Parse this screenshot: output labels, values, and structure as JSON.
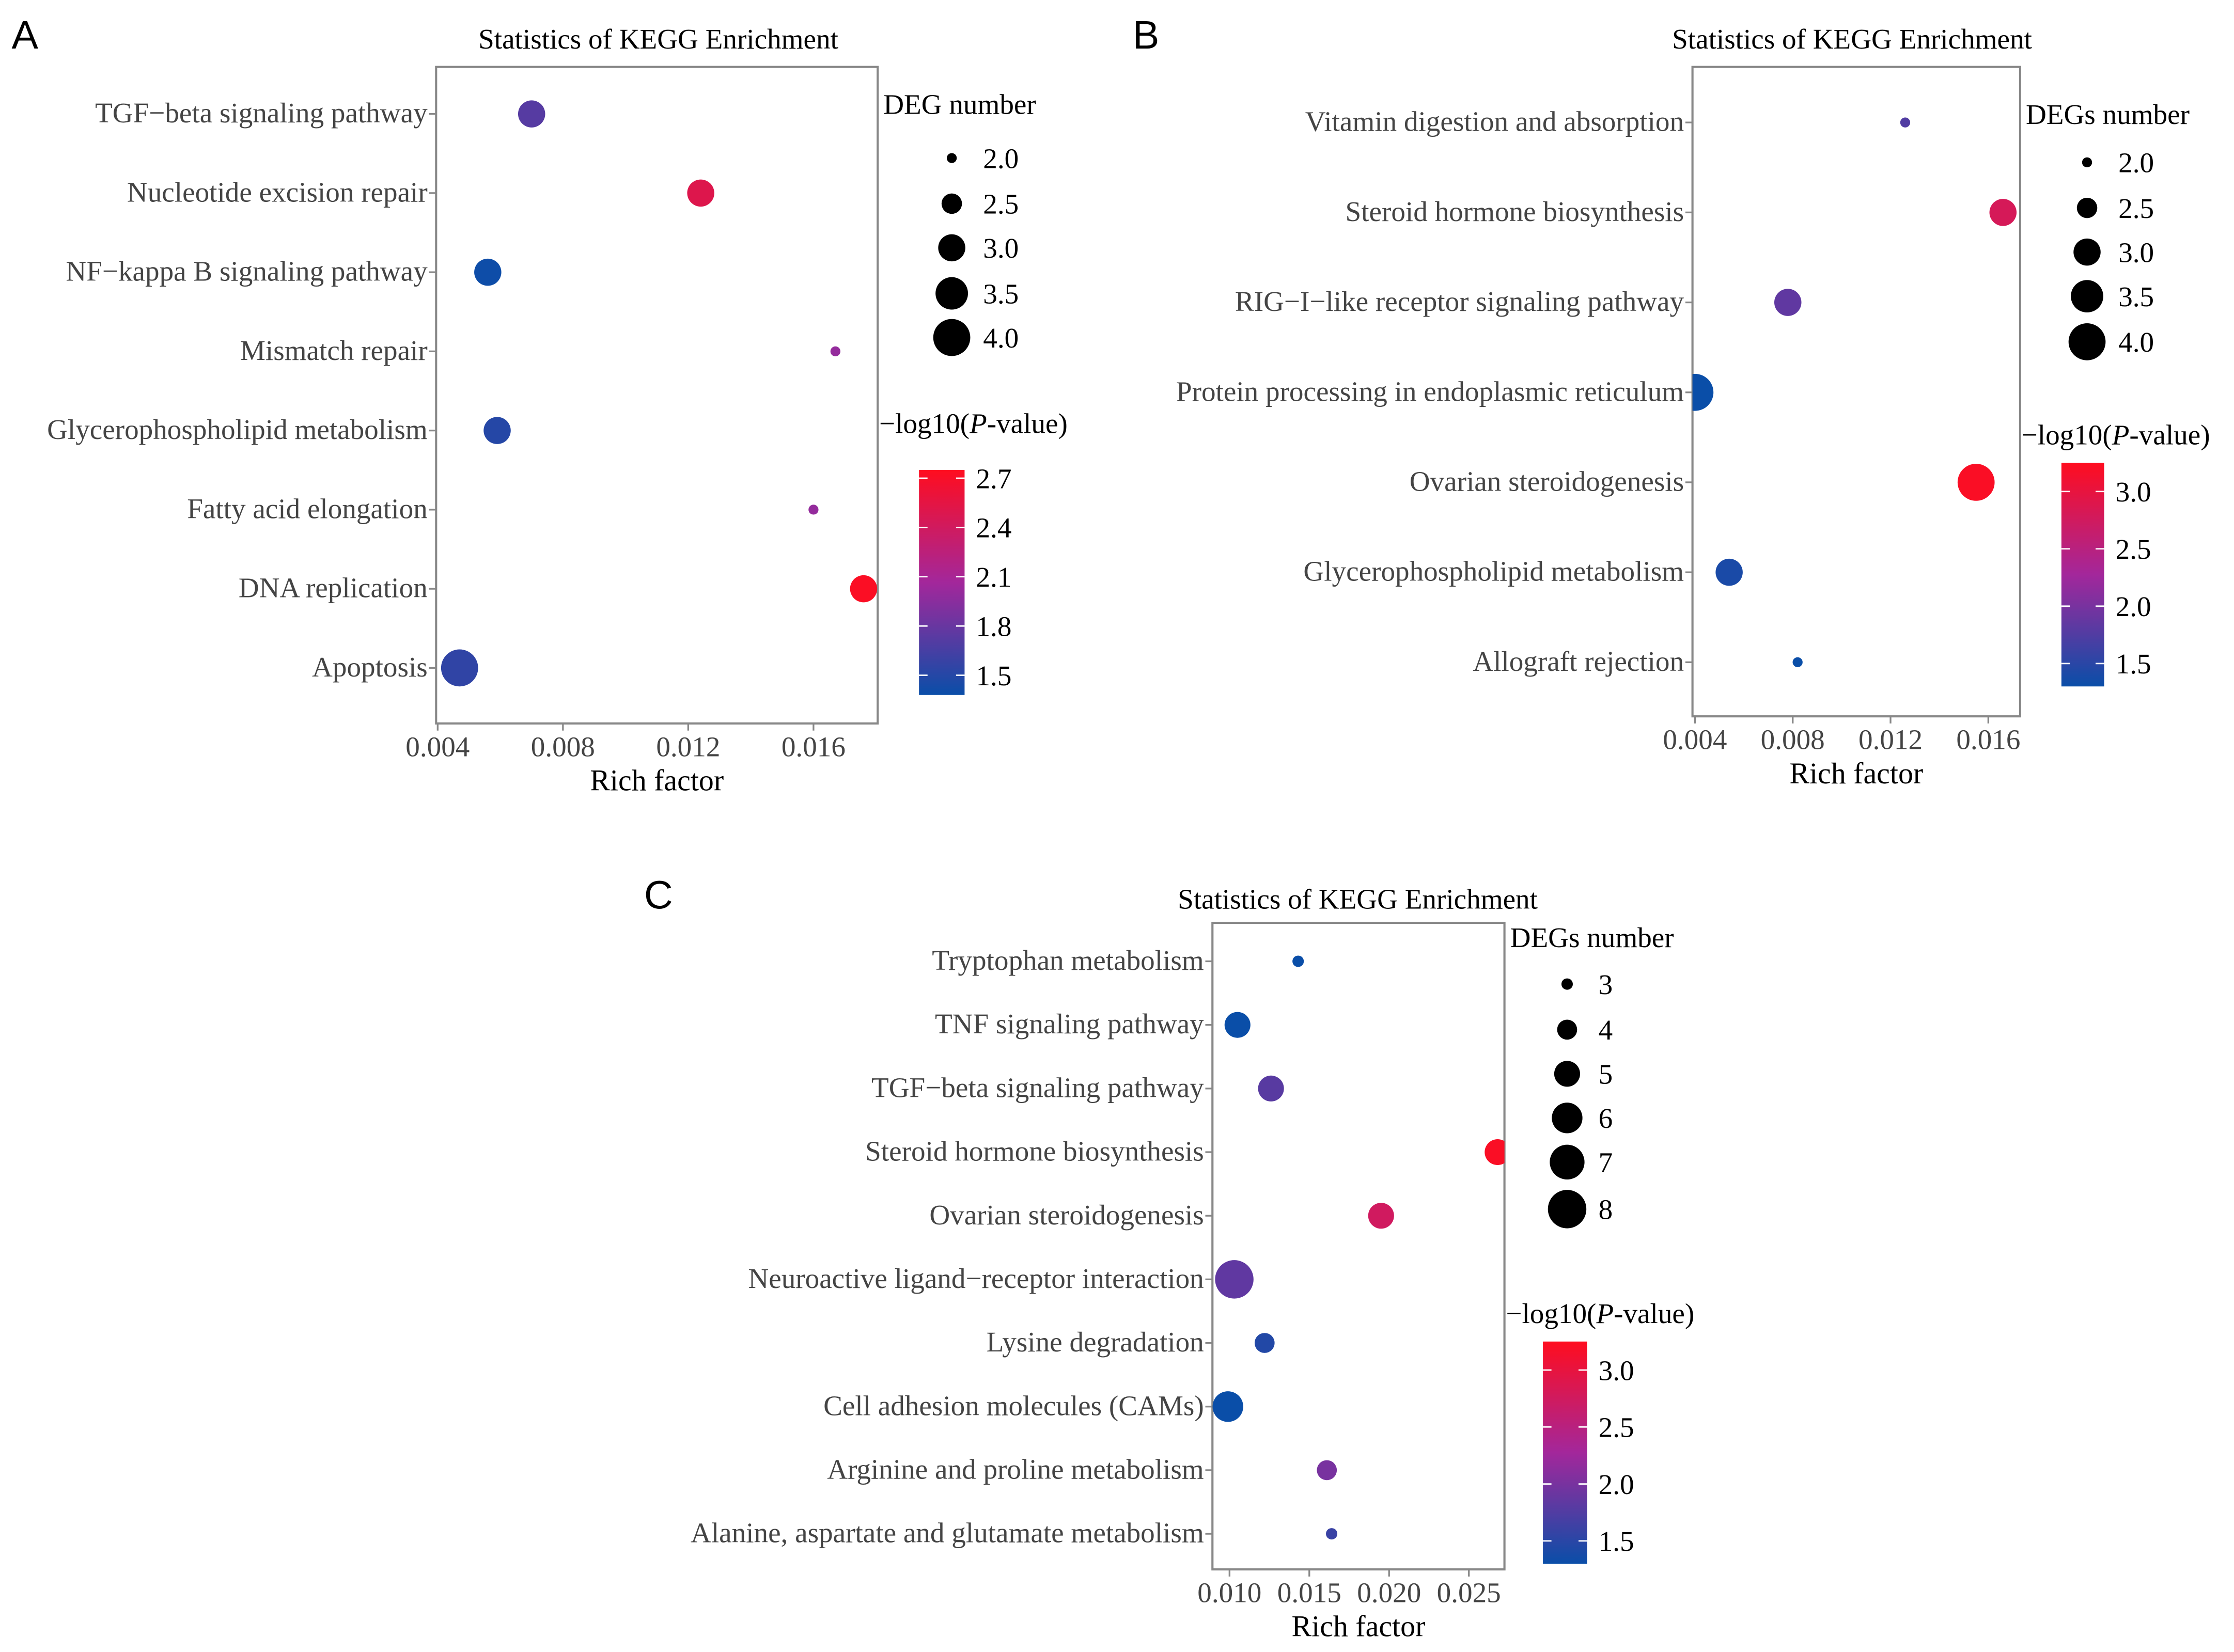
{
  "colors": {
    "low": "#0a4ea8",
    "mid": "#a3279b",
    "high": "#ff0d1f",
    "axis": "#888888"
  },
  "chart_data": [
    {
      "panel": "A",
      "type": "scatter",
      "title": "Statistics of KEGG Enrichment",
      "xlabel": "Rich factor",
      "ylabel": "",
      "xlim": [
        0.00395,
        0.01805
      ],
      "xticks": [
        "0.004",
        "0.008",
        "0.012",
        "0.016"
      ],
      "size_legend_title": "DEG number",
      "size_ticks": [
        "2.0",
        "2.5",
        "3.0",
        "3.5",
        "4.0"
      ],
      "size_range": [
        2,
        4
      ],
      "color_legend_title_prefix": "−log10(",
      "color_legend_title_italic": "P",
      "color_legend_title_suffix": "-value)",
      "color_ticks": [
        "1.5",
        "1.8",
        "2.1",
        "2.4",
        "2.7"
      ],
      "color_range": [
        1.38,
        2.75
      ],
      "categories": [
        "TGF−beta signaling pathway",
        "Nucleotide excision repair",
        "NF−kappa B signaling pathway",
        "Mismatch repair",
        "Glycerophospholipid metabolism",
        "Fatty acid elongation",
        "DNA replication",
        "Apoptosis"
      ],
      "rich_factor": [
        0.007,
        0.0124,
        0.0056,
        0.0167,
        0.0059,
        0.016,
        0.0176,
        0.0047
      ],
      "deg_number": [
        3,
        3,
        3,
        2,
        3,
        2,
        3,
        4
      ],
      "neg_log10_p": [
        1.72,
        2.5,
        1.4,
        2.0,
        1.5,
        2.0,
        2.72,
        1.55
      ]
    },
    {
      "panel": "B",
      "type": "scatter",
      "title": "Statistics of KEGG Enrichment",
      "xlabel": "Rich factor",
      "ylabel": "",
      "xlim": [
        0.0039,
        0.0173
      ],
      "xticks": [
        "0.004",
        "0.008",
        "0.012",
        "0.016"
      ],
      "size_legend_title": "DEGs number",
      "size_ticks": [
        "2.0",
        "2.5",
        "3.0",
        "3.5",
        "4.0"
      ],
      "size_range": [
        2,
        4
      ],
      "color_legend_title_prefix": "−log10(",
      "color_legend_title_italic": "P",
      "color_legend_title_suffix": "-value)",
      "color_ticks": [
        "1.5",
        "2.0",
        "2.5",
        "3.0"
      ],
      "color_range": [
        1.3,
        3.25
      ],
      "categories": [
        "Vitamin digestion and absorption",
        "Steroid hormone biosynthesis",
        "RIG−I−like receptor signaling pathway",
        "Protein processing in endoplasmic reticulum",
        "Ovarian steroidogenesis",
        "Glycerophospholipid metabolism",
        "Allograft rejection"
      ],
      "rich_factor": [
        0.0126,
        0.0166,
        0.0078,
        0.004,
        0.0155,
        0.0054,
        0.0082
      ],
      "deg_number": [
        2,
        3,
        3,
        4,
        4,
        3,
        2
      ],
      "neg_log10_p": [
        1.75,
        2.8,
        1.85,
        1.3,
        3.2,
        1.4,
        1.3
      ]
    },
    {
      "panel": "C",
      "type": "scatter",
      "title": "Statistics of KEGG Enrichment",
      "xlabel": "Rich factor",
      "ylabel": "",
      "xlim": [
        0.00893,
        0.02723
      ],
      "xticks": [
        "0.010",
        "0.015",
        "0.020",
        "0.025"
      ],
      "size_legend_title": "DEGs number",
      "size_ticks": [
        "3",
        "4",
        "5",
        "6",
        "7",
        "8"
      ],
      "size_range": [
        3,
        8
      ],
      "color_legend_title_prefix": "−log10(",
      "color_legend_title_italic": "P",
      "color_legend_title_suffix": "-value)",
      "color_ticks": [
        "1.5",
        "2.0",
        "2.5",
        "3.0"
      ],
      "color_range": [
        1.3,
        3.25
      ],
      "categories": [
        "Tryptophan metabolism",
        "TNF signaling pathway",
        "TGF−beta signaling pathway",
        "Steroid hormone biosynthesis",
        "Ovarian steroidogenesis",
        "Neuroactive ligand−receptor interaction",
        "Lysine degradation",
        "Cell adhesion molecules (CAMs)",
        "Arginine and proline metabolism",
        "Alanine, aspartate and glutamate metabolism"
      ],
      "rich_factor": [
        0.0143,
        0.0105,
        0.0126,
        0.0268,
        0.0195,
        0.0103,
        0.0122,
        0.0099,
        0.0161,
        0.0164
      ],
      "deg_number": [
        3,
        5,
        5,
        5,
        5,
        8,
        4,
        6,
        4,
        3
      ],
      "neg_log10_p": [
        1.3,
        1.3,
        1.8,
        3.2,
        2.75,
        1.85,
        1.45,
        1.3,
        2.0,
        1.6
      ]
    }
  ]
}
